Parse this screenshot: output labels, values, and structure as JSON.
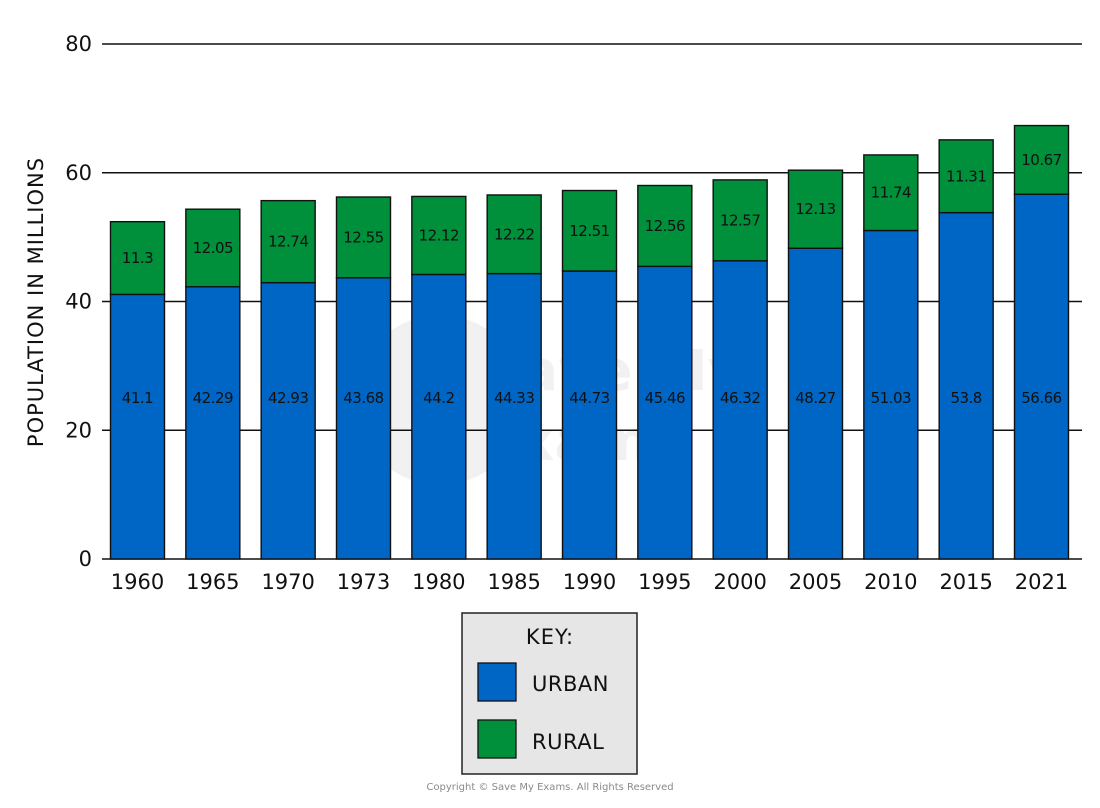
{
  "chart_data": {
    "type": "bar",
    "stacked": true,
    "categories": [
      "1960",
      "1965",
      "1970",
      "1973",
      "1980",
      "1985",
      "1990",
      "1995",
      "2000",
      "2005",
      "2010",
      "2015",
      "2021"
    ],
    "series": [
      {
        "name": "URBAN",
        "color": "#0066c5",
        "values": [
          41.1,
          42.29,
          42.93,
          43.68,
          44.2,
          44.33,
          44.73,
          45.46,
          46.32,
          48.27,
          51.03,
          53.8,
          56.66
        ],
        "labels": [
          "41.1",
          "42.29",
          "42.93",
          "43.68",
          "44.2",
          "44.33",
          "44.73",
          "45.46",
          "46.32",
          "48.27",
          "51.03",
          "53.8",
          "56.66"
        ]
      },
      {
        "name": "RURAL",
        "color": "#008f3a",
        "values": [
          11.3,
          12.05,
          12.74,
          12.55,
          12.12,
          12.22,
          12.51,
          12.56,
          12.57,
          12.13,
          11.74,
          11.31,
          10.67
        ],
        "labels": [
          "11.3",
          "12.05",
          "12.74",
          "12.55",
          "12.12",
          "12.22",
          "12.51",
          "12.56",
          "12.57",
          "12.13",
          "11.74",
          "11.31",
          "10.67"
        ]
      }
    ],
    "ylabel": "POPULATION IN MILLIONS",
    "xlabel": "",
    "ylim": [
      0,
      80
    ],
    "yticks": [
      0,
      20,
      40,
      60,
      80
    ],
    "ytick_labels": [
      "0",
      "20",
      "40",
      "60",
      "80"
    ],
    "grid": true,
    "legend": {
      "title": "KEY:",
      "placement": "bottom-center",
      "background": "#e6e6e6"
    }
  },
  "copyright": "Copyright © Save My Exams. All Rights Reserved",
  "watermark": "Save My Exams"
}
